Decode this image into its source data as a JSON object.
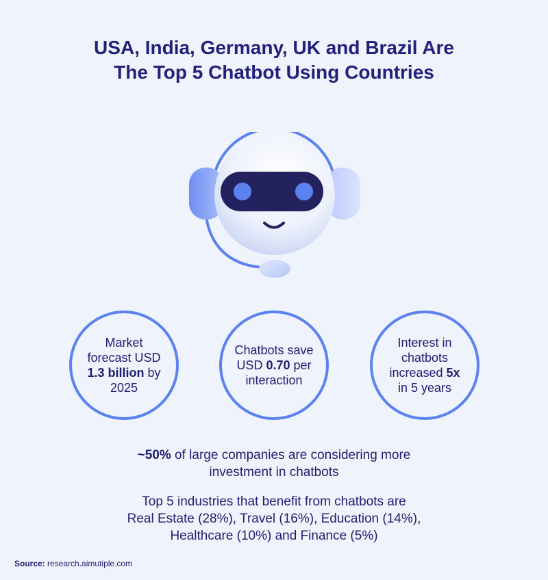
{
  "title": {
    "line1": "USA, India, Germany, UK and Brazil Are",
    "line2": "The Top 5 Chatbot Using Countries"
  },
  "stats": [
    {
      "before": "Market forecast USD",
      "highlight": "1.3 billion",
      "after": "by 2025"
    },
    {
      "before": "Chatbots save USD",
      "highlight": "0.70",
      "after": "per interaction"
    },
    {
      "before": "Interest in chatbots increased",
      "highlight": "5x",
      "after": "in 5 years"
    }
  ],
  "companies": {
    "highlight": "~50%",
    "line1_rest": "of large companies are considering more",
    "line2": "investment in chatbots"
  },
  "industries": {
    "line1": "Top 5 industries that benefit from chatbots are",
    "line2": "Real Estate (28%), Travel (16%), Education (14%),",
    "line3": "Healthcare (10%) and Finance (5%)"
  },
  "source": {
    "label": "Source:",
    "value": "research.aimutiple.com"
  },
  "colors": {
    "background": "#eff3fb",
    "text": "#1f1d6e",
    "accent": "#5b82ee"
  },
  "icons": [
    "robot-headset-icon"
  ]
}
